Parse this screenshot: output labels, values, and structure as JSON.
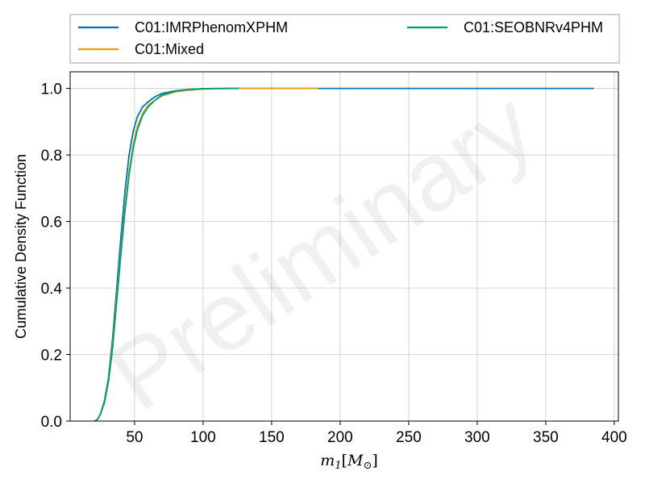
{
  "chart_data": {
    "type": "line",
    "title": "",
    "xlabel": "m_1 [M_⊙]",
    "xlabel_parts": {
      "var": "m",
      "sub": "1",
      "open": "[",
      "unit": "M",
      "unit_sub": "⊙",
      "close": "]"
    },
    "ylabel": "Cumulative Density Function",
    "xlim": [
      3,
      403
    ],
    "ylim": [
      0,
      1.05
    ],
    "xticks": [
      50,
      100,
      150,
      200,
      250,
      300,
      350,
      400
    ],
    "xtick_labels": [
      "50",
      "100",
      "150",
      "200",
      "250",
      "300",
      "350",
      "400"
    ],
    "yticks": [
      0.0,
      0.2,
      0.4,
      0.6,
      0.8,
      1.0
    ],
    "ytick_labels": [
      "0.0",
      "0.2",
      "0.4",
      "0.6",
      "0.8",
      "1.0"
    ],
    "grid": true,
    "legend_placement": "top, above plot, two columns",
    "watermark": "Preliminary",
    "series": [
      {
        "name": "C01:IMRPhenomXPHM",
        "color": "#0072b2",
        "x": [
          21,
          23,
          25,
          28,
          31,
          34,
          37,
          40,
          43,
          46,
          49,
          52,
          56,
          60,
          65,
          70,
          80,
          90,
          100,
          120,
          150,
          200,
          250,
          300,
          350,
          385
        ],
        "y": [
          0.0,
          0.005,
          0.02,
          0.06,
          0.13,
          0.25,
          0.4,
          0.55,
          0.69,
          0.8,
          0.87,
          0.915,
          0.945,
          0.96,
          0.975,
          0.985,
          0.993,
          0.997,
          0.999,
          1.0,
          1.0,
          1.0,
          1.0,
          1.0,
          1.0,
          1.0
        ]
      },
      {
        "name": "C01:Mixed",
        "color": "#e69f00",
        "x": [
          21,
          23,
          25,
          28,
          31,
          34,
          37,
          40,
          43,
          46,
          49,
          52,
          56,
          60,
          65,
          70,
          80,
          90,
          100,
          120,
          150,
          184
        ],
        "y": [
          0.0,
          0.005,
          0.02,
          0.055,
          0.12,
          0.23,
          0.37,
          0.51,
          0.64,
          0.75,
          0.83,
          0.885,
          0.925,
          0.95,
          0.965,
          0.978,
          0.99,
          0.995,
          0.998,
          1.0,
          1.0,
          1.0
        ]
      },
      {
        "name": "C01:SEOBNRv4PHM",
        "color": "#009e73",
        "x": [
          21,
          23,
          25,
          28,
          31,
          34,
          37,
          40,
          43,
          46,
          49,
          52,
          56,
          60,
          65,
          70,
          80,
          90,
          100,
          110,
          126
        ],
        "y": [
          0.0,
          0.005,
          0.02,
          0.055,
          0.12,
          0.22,
          0.36,
          0.5,
          0.63,
          0.74,
          0.82,
          0.875,
          0.92,
          0.945,
          0.965,
          0.98,
          0.992,
          0.997,
          0.999,
          1.0,
          1.0
        ]
      }
    ]
  }
}
